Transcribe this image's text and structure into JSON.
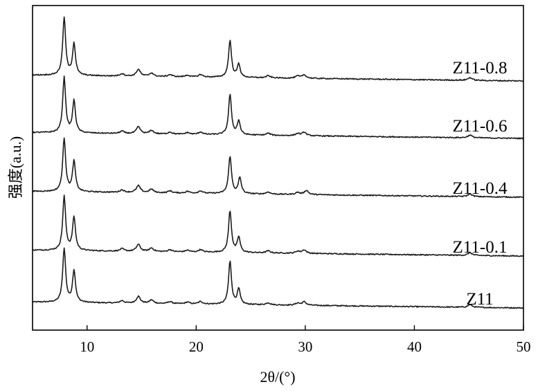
{
  "chart_data": {
    "type": "line",
    "title": "",
    "xlabel": "2θ/(°)",
    "ylabel": "强度(a.u.)",
    "xlim": [
      5,
      50
    ],
    "x_ticks": [
      10,
      20,
      30,
      40,
      50
    ],
    "y_ticks": [],
    "grid": false,
    "legend": "none",
    "stacked_offset_plot": true,
    "series": [
      {
        "name": "Z11",
        "baseline_start": 8.5,
        "baseline_end": 0,
        "peaks": [
          [
            7.9,
            78
          ],
          [
            8.8,
            46
          ],
          [
            13.2,
            3.5
          ],
          [
            14.7,
            10
          ],
          [
            15.9,
            5
          ],
          [
            17.6,
            3
          ],
          [
            19.2,
            2.5
          ],
          [
            20.4,
            3.5
          ],
          [
            23.1,
            62
          ],
          [
            23.9,
            22
          ],
          [
            26.6,
            3
          ],
          [
            29.3,
            3
          ],
          [
            29.9,
            5
          ],
          [
            45.1,
            4
          ]
        ]
      },
      {
        "name": "Z11-0.1",
        "baseline_start": 8.5,
        "baseline_end": 0,
        "peaks": [
          [
            7.9,
            78
          ],
          [
            8.8,
            48
          ],
          [
            13.2,
            3.5
          ],
          [
            14.7,
            10
          ],
          [
            15.9,
            5
          ],
          [
            17.6,
            3
          ],
          [
            19.2,
            2.5
          ],
          [
            20.4,
            3.5
          ],
          [
            23.1,
            60
          ],
          [
            23.9,
            22
          ],
          [
            26.6,
            3
          ],
          [
            29.3,
            3
          ],
          [
            29.9,
            5
          ],
          [
            45.1,
            4
          ]
        ]
      },
      {
        "name": "Z11-0.4",
        "baseline_start": 8.5,
        "baseline_end": 0,
        "peaks": [
          [
            7.9,
            77
          ],
          [
            8.8,
            44
          ],
          [
            13.2,
            3.5
          ],
          [
            14.7,
            10
          ],
          [
            15.9,
            5
          ],
          [
            17.6,
            3
          ],
          [
            19.2,
            2.5
          ],
          [
            20.4,
            3.5
          ],
          [
            23.1,
            54
          ],
          [
            24.0,
            23
          ],
          [
            26.6,
            3
          ],
          [
            29.3,
            3
          ],
          [
            30.1,
            6
          ],
          [
            45.1,
            4
          ]
        ]
      },
      {
        "name": "Z11-0.6",
        "baseline_start": 8.5,
        "baseline_end": 0,
        "peaks": [
          [
            7.9,
            80
          ],
          [
            8.8,
            46
          ],
          [
            13.2,
            3.5
          ],
          [
            14.7,
            10
          ],
          [
            15.9,
            5
          ],
          [
            17.6,
            3
          ],
          [
            19.2,
            2.5
          ],
          [
            20.4,
            3.5
          ],
          [
            23.1,
            58
          ],
          [
            23.9,
            20
          ],
          [
            26.6,
            3
          ],
          [
            29.3,
            3
          ],
          [
            29.9,
            5
          ],
          [
            45.1,
            4
          ]
        ]
      },
      {
        "name": "Z11-0.8",
        "baseline_start": 8.5,
        "baseline_end": 0,
        "peaks": [
          [
            7.9,
            83
          ],
          [
            8.8,
            46
          ],
          [
            13.2,
            3.5
          ],
          [
            14.7,
            10
          ],
          [
            15.9,
            5
          ],
          [
            17.6,
            3
          ],
          [
            19.2,
            2.5
          ],
          [
            20.4,
            3.5
          ],
          [
            23.1,
            53
          ],
          [
            23.9,
            19
          ],
          [
            26.6,
            3
          ],
          [
            29.3,
            3
          ],
          [
            29.9,
            5
          ],
          [
            45.1,
            4
          ]
        ]
      }
    ]
  }
}
